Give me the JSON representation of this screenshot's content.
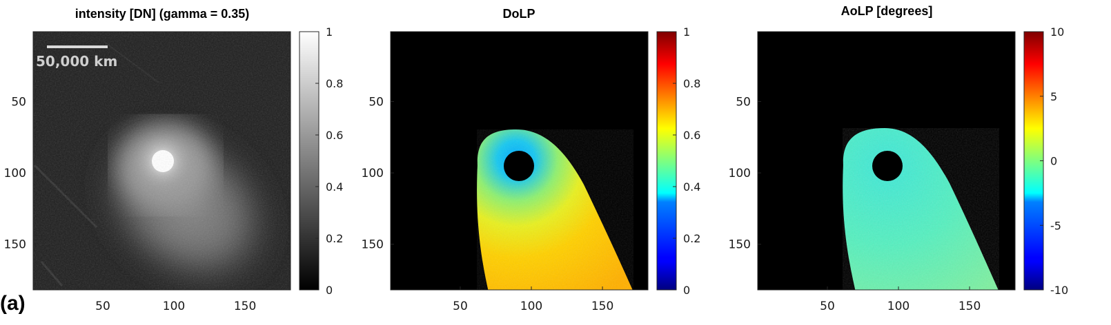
{
  "figure_label": "(a)",
  "scale_bar": {
    "label": "50,000 km",
    "color": "#d9d9d9"
  },
  "colors": {
    "frame": "#262626",
    "background_panel": "#000000"
  },
  "chart_data": [
    {
      "type": "heatmap",
      "title": "intensity [DN] (gamma = 0.35)",
      "colormap": "gray",
      "x_ticks": [
        50,
        100,
        150
      ],
      "y_ticks": [
        50,
        100,
        150
      ],
      "xlim": [
        1,
        182
      ],
      "ylim": [
        1,
        182
      ],
      "y_reversed": true,
      "colorbar": {
        "min": 0,
        "max": 1,
        "ticks": [
          "0",
          "0.2",
          "0.4",
          "0.6",
          "0.8",
          "1"
        ],
        "tick_values": [
          0,
          0.2,
          0.4,
          0.6,
          0.8,
          1
        ]
      },
      "nucleus": {
        "x": 91,
        "y": 92
      },
      "tail_direction": "lower-right"
    },
    {
      "type": "heatmap",
      "title": "DoLP",
      "colormap": "jet",
      "x_ticks": [
        50,
        100,
        150
      ],
      "y_ticks": [
        50,
        100,
        150
      ],
      "xlim": [
        1,
        182
      ],
      "ylim": [
        1,
        182
      ],
      "y_reversed": true,
      "colorbar": {
        "min": 0,
        "max": 1,
        "ticks": [
          "0",
          "0.2",
          "0.4",
          "0.6",
          "0.8",
          "1"
        ],
        "tick_values": [
          0,
          0.2,
          0.4,
          0.6,
          0.8,
          1
        ]
      },
      "masked_center": {
        "x": 91,
        "y": 93
      },
      "coma_value_near": 0.4,
      "tail_value": 0.65
    },
    {
      "type": "heatmap",
      "title": "AoLP [degrees]",
      "colormap": "jet",
      "x_ticks": [
        50,
        100,
        150
      ],
      "y_ticks": [
        50,
        100,
        150
      ],
      "xlim": [
        1,
        182
      ],
      "ylim": [
        1,
        182
      ],
      "y_reversed": true,
      "colorbar": {
        "min": -10,
        "max": 10,
        "ticks": [
          "-10",
          "-5",
          "0",
          "5",
          "10"
        ],
        "tick_values": [
          -10,
          -5,
          0,
          5,
          10
        ]
      },
      "masked_center": {
        "x": 91,
        "y": 93
      },
      "typical_value": -1
    }
  ]
}
